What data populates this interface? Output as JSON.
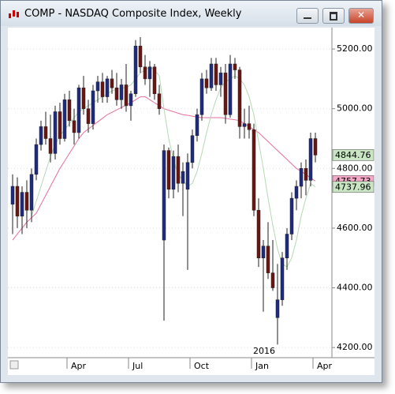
{
  "window": {
    "title": "COMP - NASDAQ Composite Index, Weekly"
  },
  "chart_data": {
    "type": "candlestick",
    "categories": [
      null,
      null,
      null,
      null,
      null,
      null,
      null,
      null,
      null,
      null,
      null,
      null,
      "Apr",
      null,
      null,
      null,
      null,
      null,
      null,
      null,
      null,
      null,
      null,
      null,
      null,
      "Jul",
      null,
      null,
      null,
      null,
      null,
      null,
      null,
      null,
      null,
      null,
      null,
      null,
      "Oct",
      null,
      null,
      null,
      null,
      null,
      null,
      null,
      null,
      null,
      null,
      null,
      null,
      "Jan",
      null,
      null,
      null,
      null,
      null,
      null,
      null,
      null,
      null,
      null,
      null,
      null,
      "Apr"
    ],
    "year_label": "2016",
    "open": [
      4680,
      4740,
      4640,
      4720,
      4660,
      4780,
      4880,
      4940,
      4900,
      4850,
      4990,
      4900,
      5030,
      4960,
      4920,
      5070,
      5000,
      4950,
      5060,
      5090,
      5040,
      5100,
      5070,
      5030,
      5080,
      5010,
      5050,
      5210,
      5140,
      5100,
      5140,
      5050,
      4560,
      4860,
      4730,
      4840,
      4750,
      4730,
      4820,
      4910,
      4980,
      5100,
      5070,
      5150,
      5080,
      5120,
      4980,
      5150,
      5130,
      4940,
      4950,
      4930,
      4660,
      4500,
      4540,
      4450,
      4300,
      4360,
      4500,
      4580,
      4700,
      4740,
      4800,
      4760,
      4900
    ],
    "high": [
      4780,
      4770,
      4740,
      4760,
      4800,
      4900,
      4960,
      4990,
      4980,
      5010,
      5020,
      5050,
      5060,
      5000,
      5080,
      5110,
      5030,
      5080,
      5110,
      5120,
      5110,
      5130,
      5120,
      5100,
      5150,
      5060,
      5230,
      5240,
      5180,
      5160,
      5150,
      5080,
      4880,
      4870,
      4860,
      4880,
      4820,
      4850,
      4930,
      5000,
      5120,
      5130,
      5170,
      5170,
      5140,
      5150,
      5180,
      5170,
      5140,
      5000,
      5010,
      4950,
      4700,
      4560,
      4620,
      4560,
      4480,
      4520,
      4600,
      4720,
      4760,
      4820,
      4830,
      4920,
      4920
    ],
    "low": [
      4580,
      4600,
      4580,
      4600,
      4620,
      4760,
      4860,
      4880,
      4820,
      4830,
      4880,
      4890,
      4940,
      4880,
      4900,
      4980,
      4920,
      4930,
      5020,
      5020,
      5020,
      5050,
      5010,
      5000,
      4990,
      4960,
      5040,
      5120,
      5080,
      5040,
      5030,
      4980,
      4290,
      4700,
      4700,
      4720,
      4640,
      4460,
      4800,
      4890,
      4960,
      5050,
      5060,
      5060,
      5040,
      4950,
      4970,
      5100,
      4900,
      4900,
      4900,
      4640,
      4470,
      4320,
      4430,
      4390,
      4210,
      4340,
      4460,
      4560,
      4660,
      4700,
      4710,
      4740,
      4820
    ],
    "close": [
      4740,
      4640,
      4720,
      4660,
      4780,
      4880,
      4940,
      4900,
      4850,
      4990,
      4900,
      5030,
      4960,
      4920,
      5070,
      5000,
      4950,
      5060,
      5090,
      5040,
      5100,
      5070,
      5030,
      5080,
      5010,
      5050,
      5210,
      5140,
      5100,
      5140,
      5050,
      5000,
      4860,
      4730,
      4840,
      4750,
      4790,
      4820,
      4910,
      4980,
      5100,
      5070,
      5150,
      5080,
      5120,
      4980,
      5150,
      5130,
      4940,
      4950,
      4930,
      4660,
      4500,
      4540,
      4450,
      4400,
      4360,
      4500,
      4580,
      4700,
      4740,
      4800,
      4760,
      4900,
      4844.76
    ],
    "up_color": "#1e2b7e",
    "down_color": "#6b1512",
    "series": [
      {
        "color": "#e56fa0",
        "values": [
          4560,
          4580,
          4600,
          4620,
          4635,
          4650,
          4680,
          4710,
          4740,
          4770,
          4800,
          4825,
          4850,
          4875,
          4900,
          4920,
          4932,
          4944,
          4956,
          4968,
          4980,
          4988,
          4996,
          5004,
          5012,
          5020,
          5030,
          5040,
          5040,
          5030,
          5020,
          5010,
          5000,
          4995,
          4990,
          4985,
          4980,
          4978,
          4975,
          4972,
          4970,
          4970,
          4970,
          4970,
          4970,
          4968,
          4965,
          4963,
          4960,
          4950,
          4940,
          4930,
          4920,
          4905,
          4890,
          4875,
          4860,
          4845,
          4830,
          4815,
          4800,
          4790,
          4780,
          4768,
          4757.73
        ]
      },
      {
        "color": "#b5d9b5",
        "values": [
          null,
          null,
          null,
          null,
          4640,
          4690,
          4740,
          4790,
          4840,
          4880,
          4910,
          4930,
          4950,
          4970,
          4990,
          5000,
          5010,
          5020,
          5030,
          5040,
          5050,
          5060,
          5065,
          5070,
          5070,
          5080,
          5100,
          5120,
          5130,
          5140,
          5130,
          5110,
          5000,
          4900,
          4830,
          4780,
          4760,
          4740,
          4750,
          4790,
          4850,
          4920,
          4980,
          5030,
          5070,
          5090,
          5100,
          5110,
          5100,
          5080,
          5040,
          4980,
          4890,
          4800,
          4700,
          4610,
          4530,
          4480,
          4470,
          4500,
          4560,
          4640,
          4700,
          4750,
          4737.96
        ]
      }
    ],
    "ylim": [
      4166,
      5269
    ],
    "yticks": [
      {
        "value": 4200,
        "label": "4200.00"
      },
      {
        "value": 4400,
        "label": "4400.00"
      },
      {
        "value": 4600,
        "label": "4600.00"
      },
      {
        "value": 4800,
        "label": "4800.00"
      },
      {
        "value": 5000,
        "label": "5000.00"
      },
      {
        "value": 5200,
        "label": "5200.00"
      }
    ],
    "grid": true
  }
}
